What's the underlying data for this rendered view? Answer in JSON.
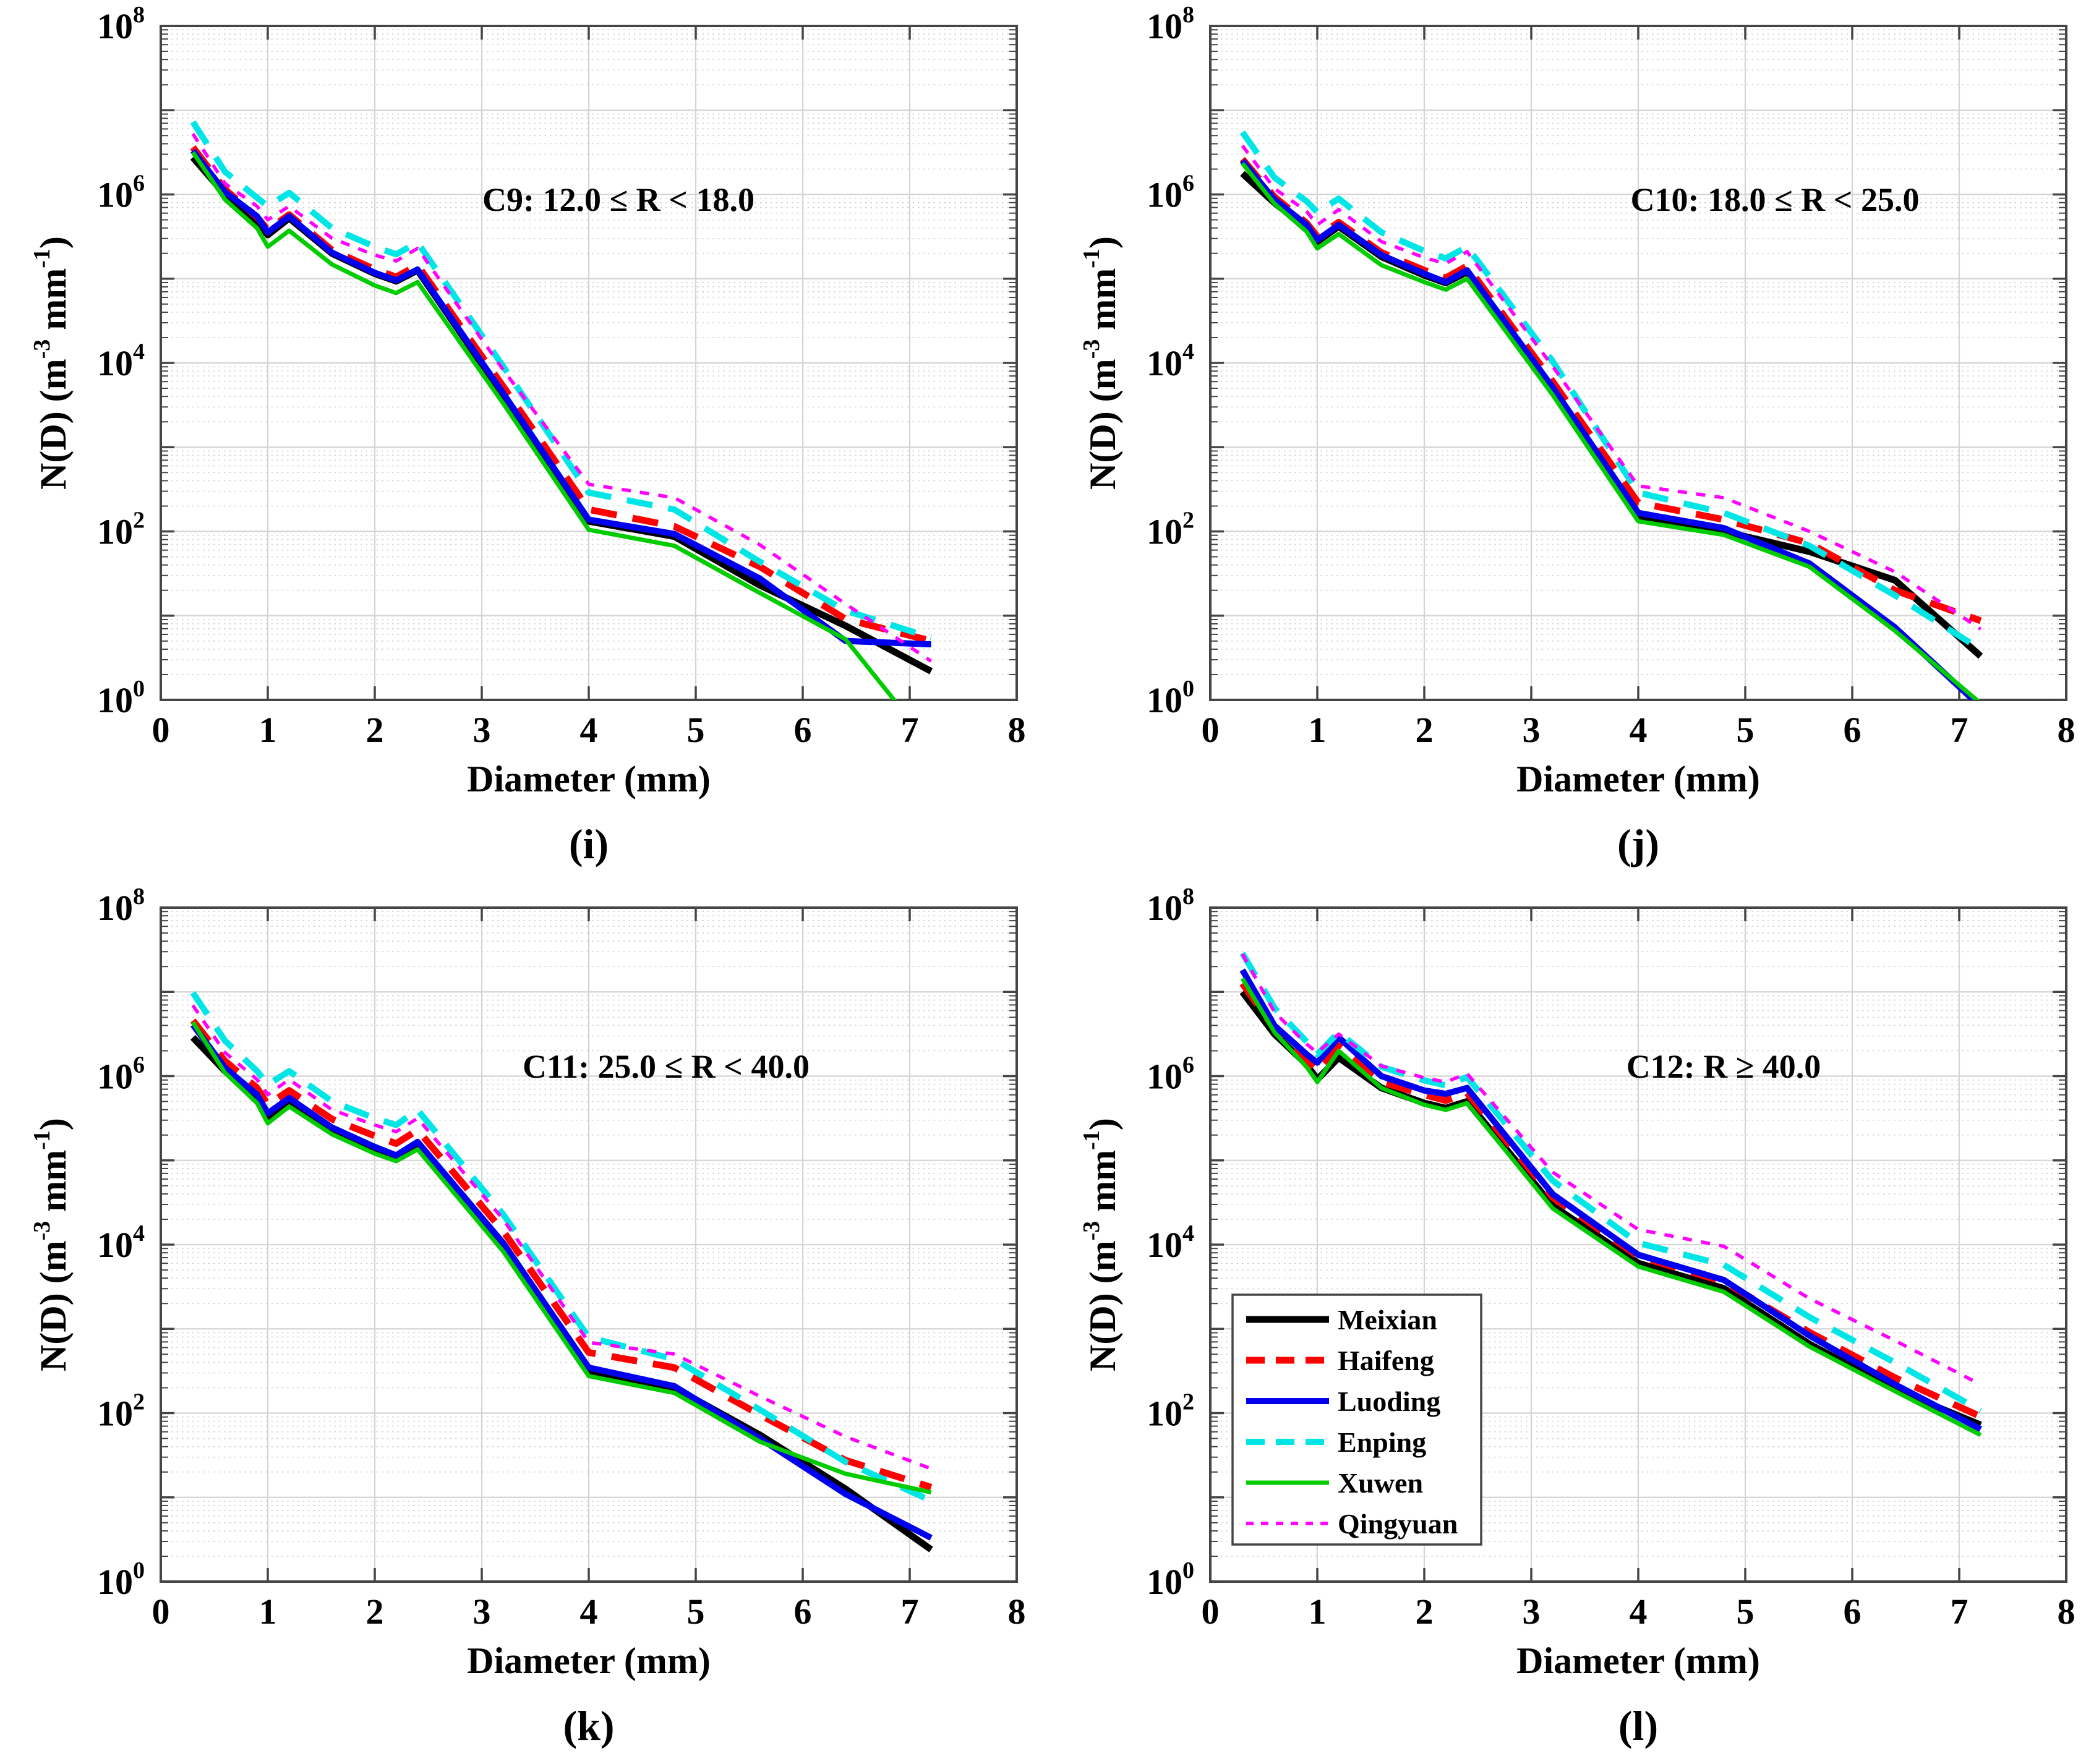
{
  "figure": {
    "background": "#ffffff",
    "grid_color": "#d4d4d4",
    "axis_color": "#454545",
    "panels_order": [
      "i",
      "j",
      "k",
      "l"
    ]
  },
  "axis": {
    "xlabel": "Diameter (mm)",
    "ylabel_parts": [
      "N(D) (m",
      "-3",
      " mm",
      "-1",
      ")"
    ],
    "x_ticks": [
      0,
      1,
      2,
      3,
      4,
      5,
      6,
      7,
      8
    ],
    "y_tick_exponents": [
      8,
      6,
      4,
      2,
      0
    ],
    "xlim": [
      0,
      8
    ],
    "y_scale": "log10",
    "ylim_exponents": [
      0,
      8
    ]
  },
  "legend": {
    "location": "panel-l-left",
    "entries": [
      "Meixian",
      "Haifeng",
      "Luoding",
      "Enping",
      "Xuwen",
      "Qingyuan"
    ]
  },
  "chart_data": [
    {
      "id": "i",
      "type": "line",
      "title": "C9: 12.0 ≤ R < 18.0",
      "xlabel": "Diameter (mm)",
      "sublabel": "(i)",
      "has_legend": false,
      "x_mm": [
        0.3,
        0.6,
        0.9,
        1.0,
        1.2,
        1.6,
        2.0,
        2.2,
        2.4,
        3.2,
        4.0,
        4.8,
        5.6,
        6.4,
        7.2
      ],
      "series": [
        {
          "name": "Meixian",
          "color": "#000000",
          "style": "solid",
          "log10_N": [
            6.44,
            6.0,
            5.68,
            5.52,
            5.72,
            5.3,
            5.06,
            4.97,
            5.1,
            3.62,
            2.12,
            1.94,
            1.36,
            0.88,
            0.34
          ]
        },
        {
          "name": "Haifeng",
          "color": "#ff0000",
          "style": "dashed",
          "log10_N": [
            6.56,
            6.06,
            5.73,
            5.58,
            5.76,
            5.34,
            5.11,
            5.02,
            5.16,
            3.72,
            2.26,
            2.06,
            1.58,
            0.96,
            0.7
          ]
        },
        {
          "name": "Luoding",
          "color": "#0000ee",
          "style": "solid",
          "log10_N": [
            6.52,
            6.03,
            5.74,
            5.55,
            5.74,
            5.31,
            5.07,
            4.98,
            5.11,
            3.64,
            2.14,
            1.97,
            1.44,
            0.7,
            0.66
          ]
        },
        {
          "name": "Enping",
          "color": "#00e6e6",
          "style": "dashed",
          "log10_N": [
            6.86,
            6.27,
            5.96,
            5.86,
            6.02,
            5.6,
            5.38,
            5.29,
            5.43,
            3.96,
            2.46,
            2.26,
            1.64,
            1.06,
            0.74
          ]
        },
        {
          "name": "Xuwen",
          "color": "#00cc00",
          "style": "solid",
          "log10_N": [
            6.5,
            5.94,
            5.6,
            5.38,
            5.57,
            5.17,
            4.92,
            4.83,
            4.96,
            3.52,
            2.02,
            1.83,
            1.27,
            0.72,
            -0.55
          ]
        },
        {
          "name": "Qingyuan",
          "color": "#ff00ff",
          "style": "fine-dashed",
          "log10_N": [
            6.72,
            6.13,
            5.86,
            5.7,
            5.86,
            5.48,
            5.28,
            5.21,
            5.36,
            3.92,
            2.56,
            2.4,
            1.84,
            1.14,
            0.46
          ]
        }
      ]
    },
    {
      "id": "j",
      "type": "line",
      "title": "C10: 18.0 ≤ R < 25.0",
      "xlabel": "Diameter (mm)",
      "sublabel": "(j)",
      "has_legend": false,
      "x_mm": [
        0.3,
        0.6,
        0.9,
        1.0,
        1.2,
        1.6,
        2.0,
        2.2,
        2.4,
        3.2,
        4.0,
        4.8,
        5.6,
        6.4,
        7.2
      ],
      "series": [
        {
          "name": "Meixian",
          "color": "#000000",
          "style": "solid",
          "log10_N": [
            6.25,
            5.9,
            5.6,
            5.44,
            5.62,
            5.26,
            5.04,
            4.95,
            5.08,
            3.68,
            2.18,
            2.0,
            1.76,
            1.42,
            0.52
          ]
        },
        {
          "name": "Haifeng",
          "color": "#ff0000",
          "style": "dashed",
          "log10_N": [
            6.42,
            5.97,
            5.66,
            5.5,
            5.67,
            5.31,
            5.1,
            5.01,
            5.15,
            3.78,
            2.34,
            2.14,
            1.86,
            1.3,
            0.94
          ]
        },
        {
          "name": "Luoding",
          "color": "#0000ee",
          "style": "solid",
          "log10_N": [
            6.4,
            5.94,
            5.64,
            5.46,
            5.64,
            5.28,
            5.06,
            4.96,
            5.1,
            3.71,
            2.22,
            2.04,
            1.62,
            0.86,
            -0.08
          ]
        },
        {
          "name": "Enping",
          "color": "#00e6e6",
          "style": "dashed",
          "log10_N": [
            6.74,
            6.2,
            5.92,
            5.79,
            5.95,
            5.55,
            5.33,
            5.24,
            5.38,
            4.02,
            2.46,
            2.22,
            1.83,
            1.24,
            0.6
          ]
        },
        {
          "name": "Xuwen",
          "color": "#00cc00",
          "style": "solid",
          "log10_N": [
            6.37,
            5.89,
            5.56,
            5.36,
            5.53,
            5.16,
            4.96,
            4.87,
            5.0,
            3.62,
            2.12,
            1.96,
            1.58,
            0.82,
            -0.04
          ]
        },
        {
          "name": "Qingyuan",
          "color": "#ff00ff",
          "style": "fine-dashed",
          "log10_N": [
            6.58,
            6.07,
            5.8,
            5.64,
            5.82,
            5.44,
            5.25,
            5.18,
            5.32,
            3.96,
            2.54,
            2.4,
            2.0,
            1.52,
            0.84
          ]
        }
      ]
    },
    {
      "id": "k",
      "type": "line",
      "title": "C11: 25.0 ≤ R < 40.0",
      "xlabel": "Diameter (mm)",
      "sublabel": "(k)",
      "has_legend": false,
      "x_mm": [
        0.3,
        0.6,
        0.9,
        1.0,
        1.2,
        1.6,
        2.0,
        2.2,
        2.4,
        3.2,
        4.0,
        4.8,
        5.6,
        6.4,
        7.2
      ],
      "series": [
        {
          "name": "Meixian",
          "color": "#000000",
          "style": "solid",
          "log10_N": [
            6.46,
            6.06,
            5.72,
            5.5,
            5.7,
            5.36,
            5.12,
            5.03,
            5.18,
            3.96,
            2.48,
            2.3,
            1.74,
            1.1,
            0.38
          ]
        },
        {
          "name": "Haifeng",
          "color": "#ff0000",
          "style": "dashed",
          "log10_N": [
            6.66,
            6.18,
            5.86,
            5.66,
            5.83,
            5.49,
            5.29,
            5.2,
            5.36,
            4.16,
            2.72,
            2.54,
            1.98,
            1.44,
            1.12
          ]
        },
        {
          "name": "Luoding",
          "color": "#0000ee",
          "style": "solid",
          "log10_N": [
            6.61,
            6.1,
            5.78,
            5.56,
            5.74,
            5.39,
            5.16,
            5.06,
            5.22,
            4.02,
            2.54,
            2.32,
            1.7,
            1.04,
            0.52
          ]
        },
        {
          "name": "Enping",
          "color": "#00e6e6",
          "style": "dashed",
          "log10_N": [
            6.99,
            6.42,
            6.06,
            5.9,
            6.06,
            5.7,
            5.5,
            5.42,
            5.6,
            4.36,
            2.9,
            2.64,
            2.04,
            1.42,
            0.96
          ]
        },
        {
          "name": "Xuwen",
          "color": "#00cc00",
          "style": "solid",
          "log10_N": [
            6.64,
            6.04,
            5.68,
            5.44,
            5.64,
            5.31,
            5.08,
            4.99,
            5.13,
            3.92,
            2.44,
            2.24,
            1.66,
            1.28,
            1.06
          ]
        },
        {
          "name": "Qingyuan",
          "color": "#ff00ff",
          "style": "fine-dashed",
          "log10_N": [
            6.84,
            6.28,
            5.96,
            5.78,
            5.96,
            5.6,
            5.42,
            5.34,
            5.5,
            4.3,
            2.84,
            2.7,
            2.2,
            1.72,
            1.34
          ]
        }
      ]
    },
    {
      "id": "l",
      "type": "line",
      "title": "C12: R ≥ 40.0",
      "xlabel": "Diameter (mm)",
      "sublabel": "(l)",
      "has_legend": true,
      "x_mm": [
        0.3,
        0.6,
        0.9,
        1.0,
        1.2,
        1.6,
        2.0,
        2.2,
        2.4,
        3.2,
        4.0,
        4.8,
        5.6,
        6.4,
        7.2
      ],
      "series": [
        {
          "name": "Meixian",
          "color": "#000000",
          "style": "solid",
          "log10_N": [
            7.0,
            6.5,
            6.14,
            5.96,
            6.22,
            5.86,
            5.68,
            5.62,
            5.7,
            4.46,
            3.78,
            3.48,
            2.82,
            2.28,
            1.86
          ]
        },
        {
          "name": "Haifeng",
          "color": "#ff0000",
          "style": "dashed",
          "log10_N": [
            7.1,
            6.56,
            6.2,
            6.06,
            6.36,
            5.93,
            5.78,
            5.71,
            5.8,
            4.56,
            3.86,
            3.56,
            2.96,
            2.42,
            1.96
          ]
        },
        {
          "name": "Luoding",
          "color": "#0000ee",
          "style": "solid",
          "log10_N": [
            7.26,
            6.6,
            6.26,
            6.16,
            6.46,
            6.0,
            5.83,
            5.79,
            5.86,
            4.6,
            3.88,
            3.58,
            2.92,
            2.34,
            1.81
          ]
        },
        {
          "name": "Enping",
          "color": "#00e6e6",
          "style": "dashed",
          "log10_N": [
            7.46,
            6.81,
            6.41,
            6.26,
            6.52,
            6.11,
            5.95,
            5.89,
            5.99,
            4.76,
            4.02,
            3.76,
            3.14,
            2.6,
            2.03
          ]
        },
        {
          "name": "Xuwen",
          "color": "#00cc00",
          "style": "solid",
          "log10_N": [
            7.16,
            6.52,
            6.11,
            5.93,
            6.3,
            5.86,
            5.66,
            5.6,
            5.68,
            4.43,
            3.74,
            3.44,
            2.79,
            2.26,
            1.74
          ]
        },
        {
          "name": "Qingyuan",
          "color": "#ff00ff",
          "style": "fine-dashed",
          "log10_N": [
            7.45,
            6.76,
            6.38,
            6.28,
            6.5,
            6.12,
            5.98,
            5.93,
            6.03,
            4.86,
            4.18,
            3.98,
            3.36,
            2.86,
            2.34
          ]
        }
      ]
    }
  ]
}
